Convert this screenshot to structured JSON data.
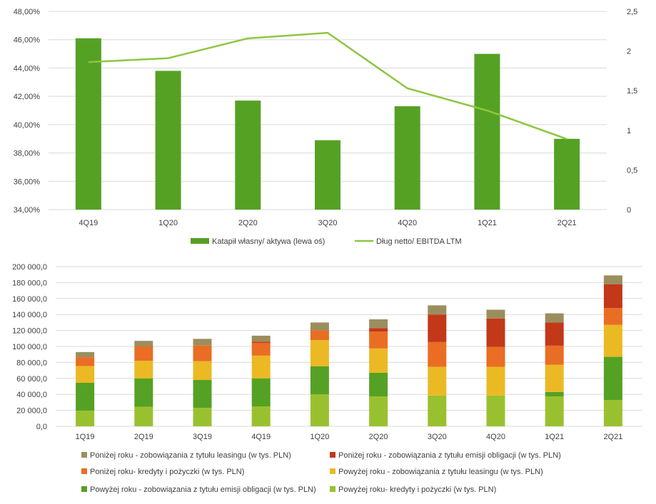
{
  "chart_data": [
    {
      "type": "bar+line",
      "categories": [
        "4Q19",
        "1Q20",
        "2Q20",
        "3Q20",
        "4Q20",
        "1Q21",
        "2Q21"
      ],
      "series": [
        {
          "name": "Katapił własny/ aktywa (lewa oś)",
          "type": "bar",
          "axis": "left",
          "color": "#55a124",
          "values": [
            46.1,
            43.8,
            41.7,
            38.9,
            41.3,
            45.0,
            39.0
          ]
        },
        {
          "name": "Dług netto/ EBITDA LTM",
          "type": "line",
          "axis": "right",
          "color": "#8dc63f",
          "values": [
            1.86,
            1.91,
            2.16,
            2.23,
            1.53,
            1.25,
            0.89
          ]
        }
      ],
      "left_axis": {
        "min": 34,
        "max": 48,
        "step": 2,
        "ticks": [
          "34,00%",
          "36,00%",
          "38,00%",
          "40,00%",
          "42,00%",
          "44,00%",
          "46,00%",
          "48,00%"
        ]
      },
      "right_axis": {
        "min": 0,
        "max": 2.5,
        "step": 0.5,
        "ticks": [
          "0",
          "0,5",
          "1",
          "1,5",
          "2",
          "2,5"
        ]
      },
      "grid": true,
      "legend": "bottom"
    },
    {
      "type": "stacked-bar",
      "categories": [
        "1Q19",
        "2Q19",
        "3Q19",
        "4Q19",
        "1Q20",
        "2Q20",
        "3Q20",
        "4Q20",
        "1Q21",
        "2Q21"
      ],
      "series": [
        {
          "name": "Powyżej roku- kredyty i pożyczki (w tys. PLN)",
          "color": "#99c12f",
          "values": [
            19500,
            24500,
            23000,
            25000,
            40000,
            37500,
            38500,
            38500,
            37500,
            33000
          ]
        },
        {
          "name": "Powyżej roku - zobowiązania z tytułu emisji obligacji (w tys. PLN)",
          "color": "#55a124",
          "values": [
            35000,
            35500,
            35000,
            35000,
            35000,
            29500,
            0,
            0,
            5500,
            54000
          ]
        },
        {
          "name": "Powyżej roku - zobowiązania z tytułu leasingu (w tys. PLN)",
          "color": "#ebb924",
          "values": [
            21000,
            22000,
            23500,
            28500,
            33000,
            30500,
            36000,
            36000,
            34000,
            40000
          ]
        },
        {
          "name": "Poniżej roku- kredyty i pożyczki (w tys. PLN)",
          "color": "#ea6d24",
          "values": [
            11000,
            18000,
            20000,
            16000,
            12000,
            21000,
            31000,
            25000,
            24000,
            21000
          ]
        },
        {
          "name": "Poniżej roku - zobowiązania z tytułu emisji obligacji (w tys. PLN)",
          "color": "#c23819",
          "values": [
            0,
            0,
            0,
            1500,
            0,
            4500,
            34500,
            35500,
            29000,
            30000
          ]
        },
        {
          "name": "Poniżej roku - zobowiązania z tytułu leasingu (w tys. PLN)",
          "color": "#9b8e5e",
          "values": [
            6500,
            7000,
            8000,
            7500,
            10000,
            11000,
            11500,
            11000,
            11500,
            11000
          ]
        }
      ],
      "y_axis": {
        "min": 0,
        "max": 200000,
        "step": 20000,
        "ticks": [
          "0,0",
          "20 000,0",
          "40 000,0",
          "60 000,0",
          "80 000,0",
          "100 000,0",
          "120 000,0",
          "140 000,0",
          "160 000,0",
          "180 000,0",
          "200 000,0"
        ]
      },
      "grid": true,
      "legend": "bottom",
      "legend_order": [
        5,
        4,
        3,
        2,
        1,
        0
      ]
    }
  ]
}
